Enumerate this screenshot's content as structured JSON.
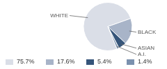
{
  "chart_data": {
    "type": "pie",
    "categories": [
      "WHITE",
      "BLACK",
      "ASIAN",
      "A.I."
    ],
    "values": [
      75.7,
      17.6,
      5.4,
      1.4
    ],
    "value_labels": [
      "75.7%",
      "17.6%",
      "5.4%",
      "1.4%"
    ],
    "colors": [
      "#dadee7",
      "#a8b4c8",
      "#36557a",
      "#7b91ae"
    ],
    "legend": "bottom"
  }
}
